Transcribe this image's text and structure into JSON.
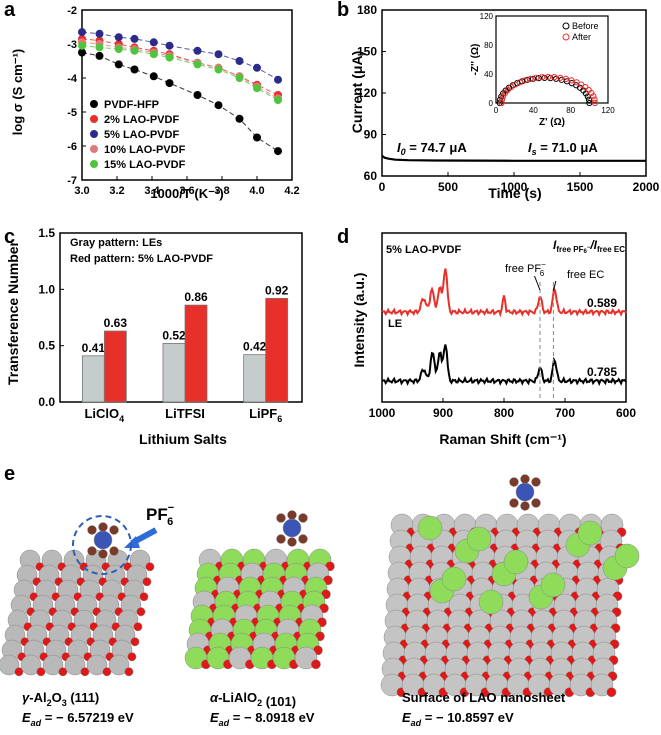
{
  "panels": {
    "a": {
      "letter": "a",
      "chart_data": {
        "type": "scatter",
        "xlabel": "1000/T (K⁻¹)",
        "ylabel": "log σ (S cm⁻¹)",
        "xlim": [
          3.0,
          4.2
        ],
        "ylim": [
          -7,
          -2
        ],
        "xticks": [
          "3.0",
          "3.2",
          "3.4",
          "3.6",
          "3.8",
          "4.0",
          "4.2"
        ],
        "yticks": [
          "-2",
          "-3",
          "-4",
          "-5",
          "-6",
          "-7"
        ],
        "x": [
          3.0,
          3.1,
          3.21,
          3.3,
          3.41,
          3.5,
          3.66,
          3.78,
          3.9,
          4.0,
          4.12
        ],
        "series": [
          {
            "name": "PVDF-HFP",
            "color": "#000000",
            "values": [
              -3.25,
              -3.35,
              -3.6,
              -3.75,
              -3.95,
              -4.15,
              -4.5,
              -4.8,
              -5.2,
              -5.75,
              -6.15
            ]
          },
          {
            "name": "2% LAO-PVDF",
            "color": "#e8302a",
            "values": [
              -2.85,
              -2.9,
              -3.0,
              -3.1,
              -3.2,
              -3.3,
              -3.55,
              -3.7,
              -3.95,
              -4.2,
              -4.5
            ]
          },
          {
            "name": "5% LAO-PVDF",
            "color": "#2b2b8c",
            "values": [
              -2.65,
              -2.7,
              -2.8,
              -2.85,
              -2.95,
              -3.05,
              -3.2,
              -3.3,
              -3.5,
              -3.7,
              -4.05
            ]
          },
          {
            "name": "10% LAO-PVDF",
            "color": "#e07a7a",
            "values": [
              -2.95,
              -3.0,
              -3.1,
              -3.15,
              -3.25,
              -3.35,
              -3.55,
              -3.7,
              -3.95,
              -4.25,
              -4.6
            ]
          },
          {
            "name": "15% LAO-PVDF",
            "color": "#4fc43f",
            "values": [
              -3.05,
              -3.1,
              -3.15,
              -3.2,
              -3.3,
              -3.4,
              -3.6,
              -3.75,
              -4.0,
              -4.3,
              -4.65
            ]
          }
        ]
      }
    },
    "b": {
      "letter": "b",
      "chart_data": {
        "type": "line",
        "xlabel": "Time (s)",
        "ylabel": "Current (μA)",
        "xlim": [
          0,
          2000
        ],
        "ylim": [
          60,
          180
        ],
        "xticks": [
          "0",
          "500",
          "1000",
          "1500",
          "2000"
        ],
        "yticks": [
          "60",
          "90",
          "120",
          "150",
          "180"
        ],
        "annotations": {
          "i0": "I",
          "i0_sub": "0",
          "i0_val": " = 74.7 μA",
          "is": "I",
          "is_sub": "s",
          "is_val": " = 71.0 μA"
        },
        "x": [
          0,
          20,
          50,
          100,
          200,
          400,
          700,
          1000,
          1400,
          1700,
          2000
        ],
        "values": [
          74.7,
          73.2,
          72.5,
          71.8,
          71.4,
          71.2,
          71.1,
          71.0,
          71.0,
          71.0,
          71.0
        ],
        "inset": {
          "xlabel": "Z' (Ω)",
          "ylabel": "-Z'' (Ω)",
          "xlim": [
            0,
            120
          ],
          "ylim": [
            0,
            120
          ],
          "xticks": [
            "0",
            "40",
            "80",
            "120"
          ],
          "yticks": [
            "0",
            "40",
            "80",
            "120"
          ],
          "series": [
            {
              "name": "Before",
              "color": "#000000",
              "center": 52,
              "radius": 48,
              "start": 4
            },
            {
              "name": "After",
              "color": "#e8302a",
              "center": 56,
              "radius": 50,
              "start": 6
            }
          ]
        }
      }
    },
    "c": {
      "letter": "c",
      "chart_data": {
        "type": "bar",
        "xlabel": "Lithium Salts",
        "ylabel": "Transference Number",
        "ylim": [
          0,
          1.5
        ],
        "yticks": [
          "0.0",
          "0.5",
          "1.0",
          "1.5"
        ],
        "categories": [
          {
            "main": "LiClO",
            "sub": "4"
          },
          {
            "main": "LiTFSI",
            "sub": ""
          },
          {
            "main": "LiPF",
            "sub": "6"
          }
        ],
        "legend_text": [
          "Gray pattern: LEs",
          "Red pattern: 5% LAO-PVDF"
        ],
        "series": [
          {
            "name": "LEs",
            "color": "#c4cccc",
            "values": [
              0.41,
              0.52,
              0.42
            ],
            "labels": [
              "0.41",
              "0.52",
              "0.42"
            ]
          },
          {
            "name": "5% LAO-PVDF",
            "color": "#e8302a",
            "values": [
              0.63,
              0.86,
              0.92
            ],
            "labels": [
              "0.63",
              "0.86",
              "0.92"
            ]
          }
        ]
      }
    },
    "d": {
      "letter": "d",
      "chart_data": {
        "type": "line",
        "xlabel": "Raman Shift (cm⁻¹)",
        "ylabel": "Intensity (a.u.)",
        "xlim": [
          1000,
          600
        ],
        "xticks": [
          "1000",
          "900",
          "800",
          "700",
          "600"
        ],
        "labels": {
          "top": "5% LAO-PVDF",
          "bottom": "LE",
          "pf6": "free PF",
          "pf6_sup": "6",
          "pf6_sup2": "−",
          "ec": "free EC",
          "ratio_i": "I",
          "ratio_sub1": "free PF",
          "ratio_sub1b": "6",
          "ratio_sub1c": "−",
          "ratio_slash": "/I",
          "ratio_sub2": "free EC",
          "val_top": "0.589",
          "val_bottom": "0.785"
        },
        "series": [
          {
            "name": "5% LAO-PVDF",
            "color": "#e8302a"
          },
          {
            "name": "LE",
            "color": "#000000"
          }
        ]
      }
    },
    "e": {
      "letter": "e",
      "pf6_main": "PF",
      "pf6_sub": "6",
      "pf6_sup": "−",
      "structures": [
        {
          "name_pre": "γ",
          "name_rest": "-Al",
          "s1": "2",
          "name_mid": "O",
          "s2": "3",
          "name_end": " (111)",
          "energy": " = − 6.57219 eV"
        },
        {
          "name_pre": "α",
          "name_rest": "-LiAlO",
          "s1": "2",
          "name_mid": "",
          "s2": "",
          "name_end": " (101)",
          "energy": " = − 8.0918 eV"
        },
        {
          "name_pre": "",
          "name_rest": "Surface of LAO nanosheet",
          "s1": "",
          "name_mid": "",
          "s2": "",
          "name_end": "",
          "energy": " = − 10.8597 eV"
        }
      ],
      "e_ad_main": "E",
      "e_ad_sub": "ad"
    }
  }
}
